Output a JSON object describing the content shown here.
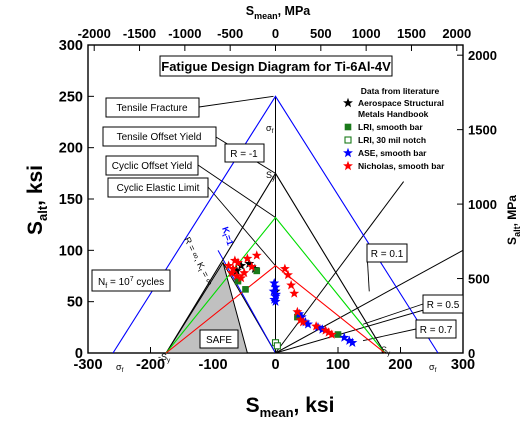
{
  "chart_data": {
    "type": "scatter",
    "title": "Fatigue Design Diagram for Ti-6Al-4V",
    "xlabel": "S_mean, ksi",
    "ylabel": "S_alt, ksi",
    "x2label": "S_mean, MPa",
    "y2label": "S_alt, MPa",
    "xlim": [
      -300,
      300
    ],
    "ylim": [
      0,
      300
    ],
    "xticks": [
      -300,
      -200,
      -100,
      0,
      100,
      200,
      300
    ],
    "yticks": [
      0,
      50,
      100,
      150,
      200,
      250,
      300
    ],
    "x2ticks": [
      -2000,
      -1500,
      -1000,
      -500,
      0,
      500,
      1000,
      1500,
      2000
    ],
    "y2ticks": [
      0,
      500,
      1000,
      1500,
      2000
    ],
    "grid": false,
    "legend_title": "Data from literature",
    "legend_position": "top-right",
    "legend": [
      {
        "name": "Aerospace Structural Metals Handbook",
        "line1": "Aerospace Structural",
        "line2": "Metals Handbook",
        "marker": "star",
        "color": "#000000"
      },
      {
        "name": "LRI, smooth bar",
        "marker": "square",
        "color": "#1a7a1a"
      },
      {
        "name": "LRI, 30 mil notch",
        "marker": "open-square",
        "color": "#1a7a1a"
      },
      {
        "name": "ASE, smooth bar",
        "marker": "star",
        "color": "#0000ff"
      },
      {
        "name": "Nicholas, smooth bar",
        "marker": "star",
        "color": "#ff0000"
      }
    ],
    "envelopes": [
      {
        "name": "Tensile Fracture",
        "color": "#0000ff",
        "points": [
          [
            -260,
            0
          ],
          [
            0,
            250
          ],
          [
            260,
            0
          ]
        ]
      },
      {
        "name": "Tensile Offset Yield",
        "color": "#000000",
        "points": [
          [
            -175,
            0
          ],
          [
            0,
            175
          ],
          [
            175,
            0
          ]
        ]
      },
      {
        "name": "Cyclic Offset Yield",
        "color": "#00dd00",
        "points": [
          [
            -175,
            0
          ],
          [
            0,
            132
          ],
          [
            175,
            0
          ]
        ]
      },
      {
        "name": "Cyclic Elastic Limit",
        "color": "#ff0000",
        "points": [
          [
            -175,
            0
          ],
          [
            0,
            85
          ],
          [
            175,
            0
          ]
        ]
      }
    ],
    "r_lines": [
      {
        "label": "R = -1",
        "end": [
          0,
          250
        ]
      },
      {
        "label": "R = 0.1",
        "end": [
          205,
          167
        ]
      },
      {
        "label": "R = 0.5",
        "end": [
          300,
          100
        ]
      },
      {
        "label": "R = 0.7",
        "end": [
          300,
          53
        ]
      }
    ],
    "safe_region": [
      [
        -175,
        0
      ],
      [
        -84,
        88
      ],
      [
        -45,
        0
      ]
    ],
    "series": [
      {
        "name": "Aerospace Structural Metals Handbook",
        "marker": "star",
        "color": "#000000",
        "points": [
          [
            -62,
            80
          ],
          [
            -55,
            85
          ],
          [
            -42,
            87
          ],
          [
            -33,
            82
          ],
          [
            0,
            60
          ]
        ]
      },
      {
        "name": "LRI, smooth bar",
        "marker": "square",
        "color": "#1a7a1a",
        "points": [
          [
            -60,
            70
          ],
          [
            -48,
            62
          ],
          [
            -30,
            80
          ],
          [
            35,
            35
          ],
          [
            100,
            18
          ]
        ]
      },
      {
        "name": "LRI, 30 mil notch",
        "marker": "open-square",
        "color": "#1a7a1a",
        "points": [
          [
            0,
            10
          ],
          [
            3,
            7
          ]
        ]
      },
      {
        "name": "ASE, smooth bar",
        "marker": "star",
        "color": "#0000ff",
        "points": [
          [
            -2,
            68
          ],
          [
            0,
            64
          ],
          [
            -3,
            60
          ],
          [
            1,
            57
          ],
          [
            0,
            55
          ],
          [
            -2,
            52
          ],
          [
            0,
            50
          ],
          [
            38,
            38
          ],
          [
            42,
            35
          ],
          [
            48,
            30
          ],
          [
            52,
            28
          ],
          [
            68,
            25
          ],
          [
            75,
            23
          ],
          [
            110,
            15
          ],
          [
            118,
            12
          ],
          [
            123,
            10
          ]
        ]
      },
      {
        "name": "Nicholas, smooth bar",
        "marker": "star",
        "color": "#ff0000",
        "points": [
          [
            -75,
            85
          ],
          [
            -70,
            78
          ],
          [
            -68,
            82
          ],
          [
            -65,
            90
          ],
          [
            -62,
            75
          ],
          [
            -60,
            88
          ],
          [
            -55,
            73
          ],
          [
            -50,
            78
          ],
          [
            -45,
            92
          ],
          [
            -38,
            84
          ],
          [
            -30,
            95
          ],
          [
            15,
            82
          ],
          [
            20,
            76
          ],
          [
            25,
            66
          ],
          [
            30,
            58
          ],
          [
            35,
            40
          ],
          [
            40,
            32
          ],
          [
            44,
            30
          ],
          [
            65,
            26
          ],
          [
            80,
            22
          ],
          [
            85,
            20
          ],
          [
            90,
            18
          ]
        ]
      }
    ],
    "annotations": {
      "tensile_fracture": "Tensile Fracture",
      "tensile_offset_yield": "Tensile Offset Yield",
      "cyclic_offset_yield": "Cyclic Offset Yield",
      "cyclic_elastic_limit": "Cyclic Elastic Limit",
      "r_minus1": "R = -1",
      "r_01": "R = 0.1",
      "r_05": "R = 0.5",
      "r_07": "R = 0.7",
      "nf_main": "N",
      "nf_sub": "f",
      "nf_eq": " = 10",
      "nf_sup": "7",
      "nf_tail": " cycles",
      "safe": "SAFE",
      "r_inf": "R = ∞, K",
      "r_inf_sub": "t",
      "r_inf_tail": " = ∞",
      "kt1": "K",
      "kt1_sub": "t",
      "kt1_tail": "=1",
      "sigma_f_top": "σ",
      "sigma_f_top_sub": "f",
      "s_y_top": "S",
      "s_y_top_sub": "y",
      "sigma_f_left": "σ",
      "sigma_f_left_sub": "f",
      "sigma_f_right": "σ",
      "sigma_f_right_sub": "f",
      "s_y_left": "-S",
      "s_y_left_sub": "y",
      "s_y_right": "S",
      "s_y_right_sub": "y"
    }
  }
}
